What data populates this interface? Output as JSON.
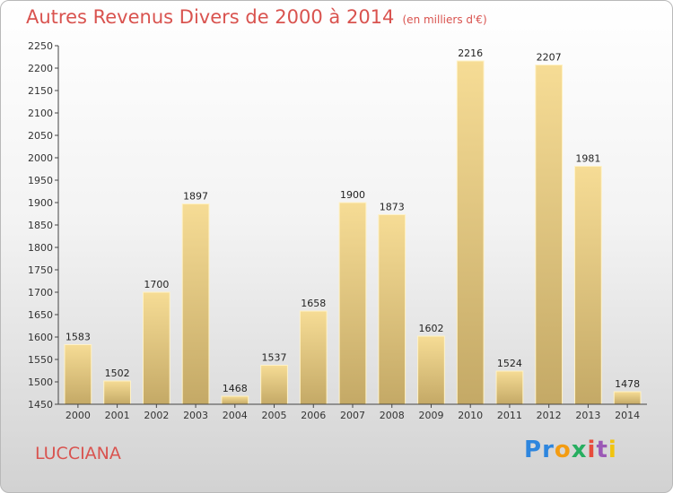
{
  "header": {
    "title": "Autres Revenus Divers de 2000 à 2014",
    "subtitle": "(en milliers d'€)"
  },
  "footer": {
    "location": "LUCCIANA",
    "brand": [
      "P",
      "r",
      "o",
      "x",
      "i",
      "t",
      "i"
    ]
  },
  "colors": {
    "title": "#d9534f",
    "bar_top": "#f6dc95",
    "bar_bottom": "#c4a966",
    "brand": [
      "#2e86de",
      "#2e86de",
      "#f39c12",
      "#27ae60",
      "#e74c3c",
      "#9b59b6",
      "#f1c40f"
    ]
  },
  "chart_data": {
    "type": "bar",
    "title": "Autres Revenus Divers de 2000 à 2014",
    "subtitle": "(en milliers d'€)",
    "categories": [
      "2000",
      "2001",
      "2002",
      "2003",
      "2004",
      "2005",
      "2006",
      "2007",
      "2008",
      "2009",
      "2010",
      "2011",
      "2012",
      "2013",
      "2014"
    ],
    "values": [
      1583,
      1502,
      1700,
      1897,
      1468,
      1537,
      1658,
      1900,
      1873,
      1602,
      2216,
      1524,
      2207,
      1981,
      1478
    ],
    "ylim": [
      1450,
      2250
    ],
    "yticks": [
      1450,
      1500,
      1550,
      1600,
      1650,
      1700,
      1750,
      1800,
      1850,
      1900,
      1950,
      2000,
      2050,
      2100,
      2150,
      2200,
      2250
    ],
    "grid": false,
    "legend": "none",
    "data_labels": true
  }
}
